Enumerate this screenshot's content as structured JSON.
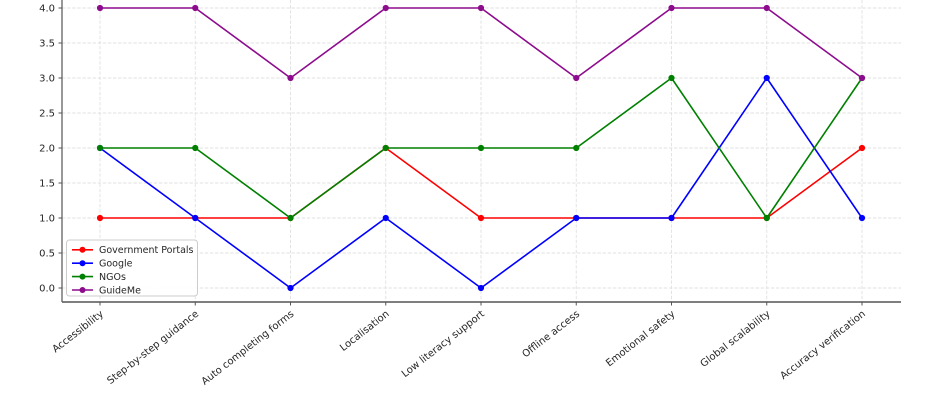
{
  "chart_data": {
    "type": "line",
    "title": "",
    "xlabel": "",
    "ylabel": "",
    "categories": [
      "Accessibility",
      "Step-by-step guidance",
      "Auto completing forms",
      "Localisation",
      "Low literacy support",
      "Offline access",
      "Emotional safety",
      "Global scalability",
      "Accuracy verification"
    ],
    "series": [
      {
        "name": "Government Portals",
        "color": "#ff0000",
        "values": [
          1,
          1,
          1,
          2,
          1,
          1,
          1,
          1,
          2
        ]
      },
      {
        "name": "Google",
        "color": "#0000ff",
        "values": [
          2,
          1,
          0,
          1,
          0,
          1,
          1,
          3,
          1
        ]
      },
      {
        "name": "NGOs",
        "color": "#008000",
        "values": [
          2,
          2,
          1,
          2,
          2,
          2,
          3,
          1,
          3
        ]
      },
      {
        "name": "GuideMe",
        "color": "#8d0b8d",
        "values": [
          4,
          4,
          3,
          4,
          4,
          3,
          4,
          4,
          3
        ]
      }
    ],
    "ylim": [
      -0.2,
      4.2
    ],
    "yticks": [
      0.0,
      0.5,
      1.0,
      1.5,
      2.0,
      2.5,
      3.0,
      3.5,
      4.0
    ],
    "ytick_labels": [
      "0.0",
      "0.5",
      "1.0",
      "1.5",
      "2.0",
      "2.5",
      "3.0",
      "3.5",
      "4.0"
    ],
    "grid": true,
    "grid_style": "dashed",
    "legend_position": "lower left",
    "marker": "circle",
    "x_label_rotation_deg": 38
  },
  "style": {
    "background": "#ffffff",
    "grid_color": "#e0e0e0",
    "spine_color": "#555555",
    "tick_label_color": "#262626",
    "legend_border_color": "#cccccc",
    "legend_background": "#ffffff"
  }
}
